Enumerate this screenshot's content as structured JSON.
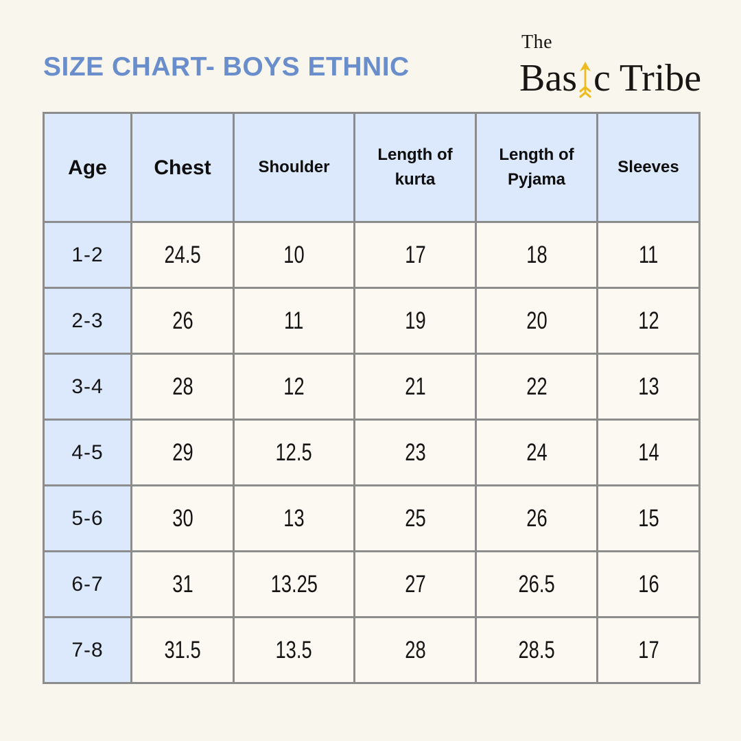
{
  "page": {
    "title": "SIZE CHART- BOYS ETHNIC",
    "background_color": "#f9f6ed",
    "title_color": "#6a8ecb"
  },
  "logo": {
    "name": "The Basic Tribe",
    "line_top": "The",
    "main_part1": "Bas",
    "main_part2": "c Tribe",
    "arrow_icon_color": "#ecbc1f",
    "text_color": "#181613"
  },
  "table": {
    "header_bg": "#dce8fc",
    "row_bg": "#fbf9f1",
    "border_color": "#8c8c8c",
    "columns": [
      "Age",
      "Chest",
      "Shoulder",
      "Length of kurta",
      "Length of Pyjama",
      "Sleeves"
    ],
    "rows": [
      [
        "1-2",
        "24.5",
        "10",
        "17",
        "18",
        "11"
      ],
      [
        "2-3",
        "26",
        "11",
        "19",
        "20",
        "12"
      ],
      [
        "3-4",
        "28",
        "12",
        "21",
        "22",
        "13"
      ],
      [
        "4-5",
        "29",
        "12.5",
        "23",
        "24",
        "14"
      ],
      [
        "5-6",
        "30",
        "13",
        "25",
        "26",
        "15"
      ],
      [
        "6-7",
        "31",
        "13.25",
        "27",
        "26.5",
        "16"
      ],
      [
        "7-8",
        "31.5",
        "13.5",
        "28",
        "28.5",
        "17"
      ]
    ]
  }
}
